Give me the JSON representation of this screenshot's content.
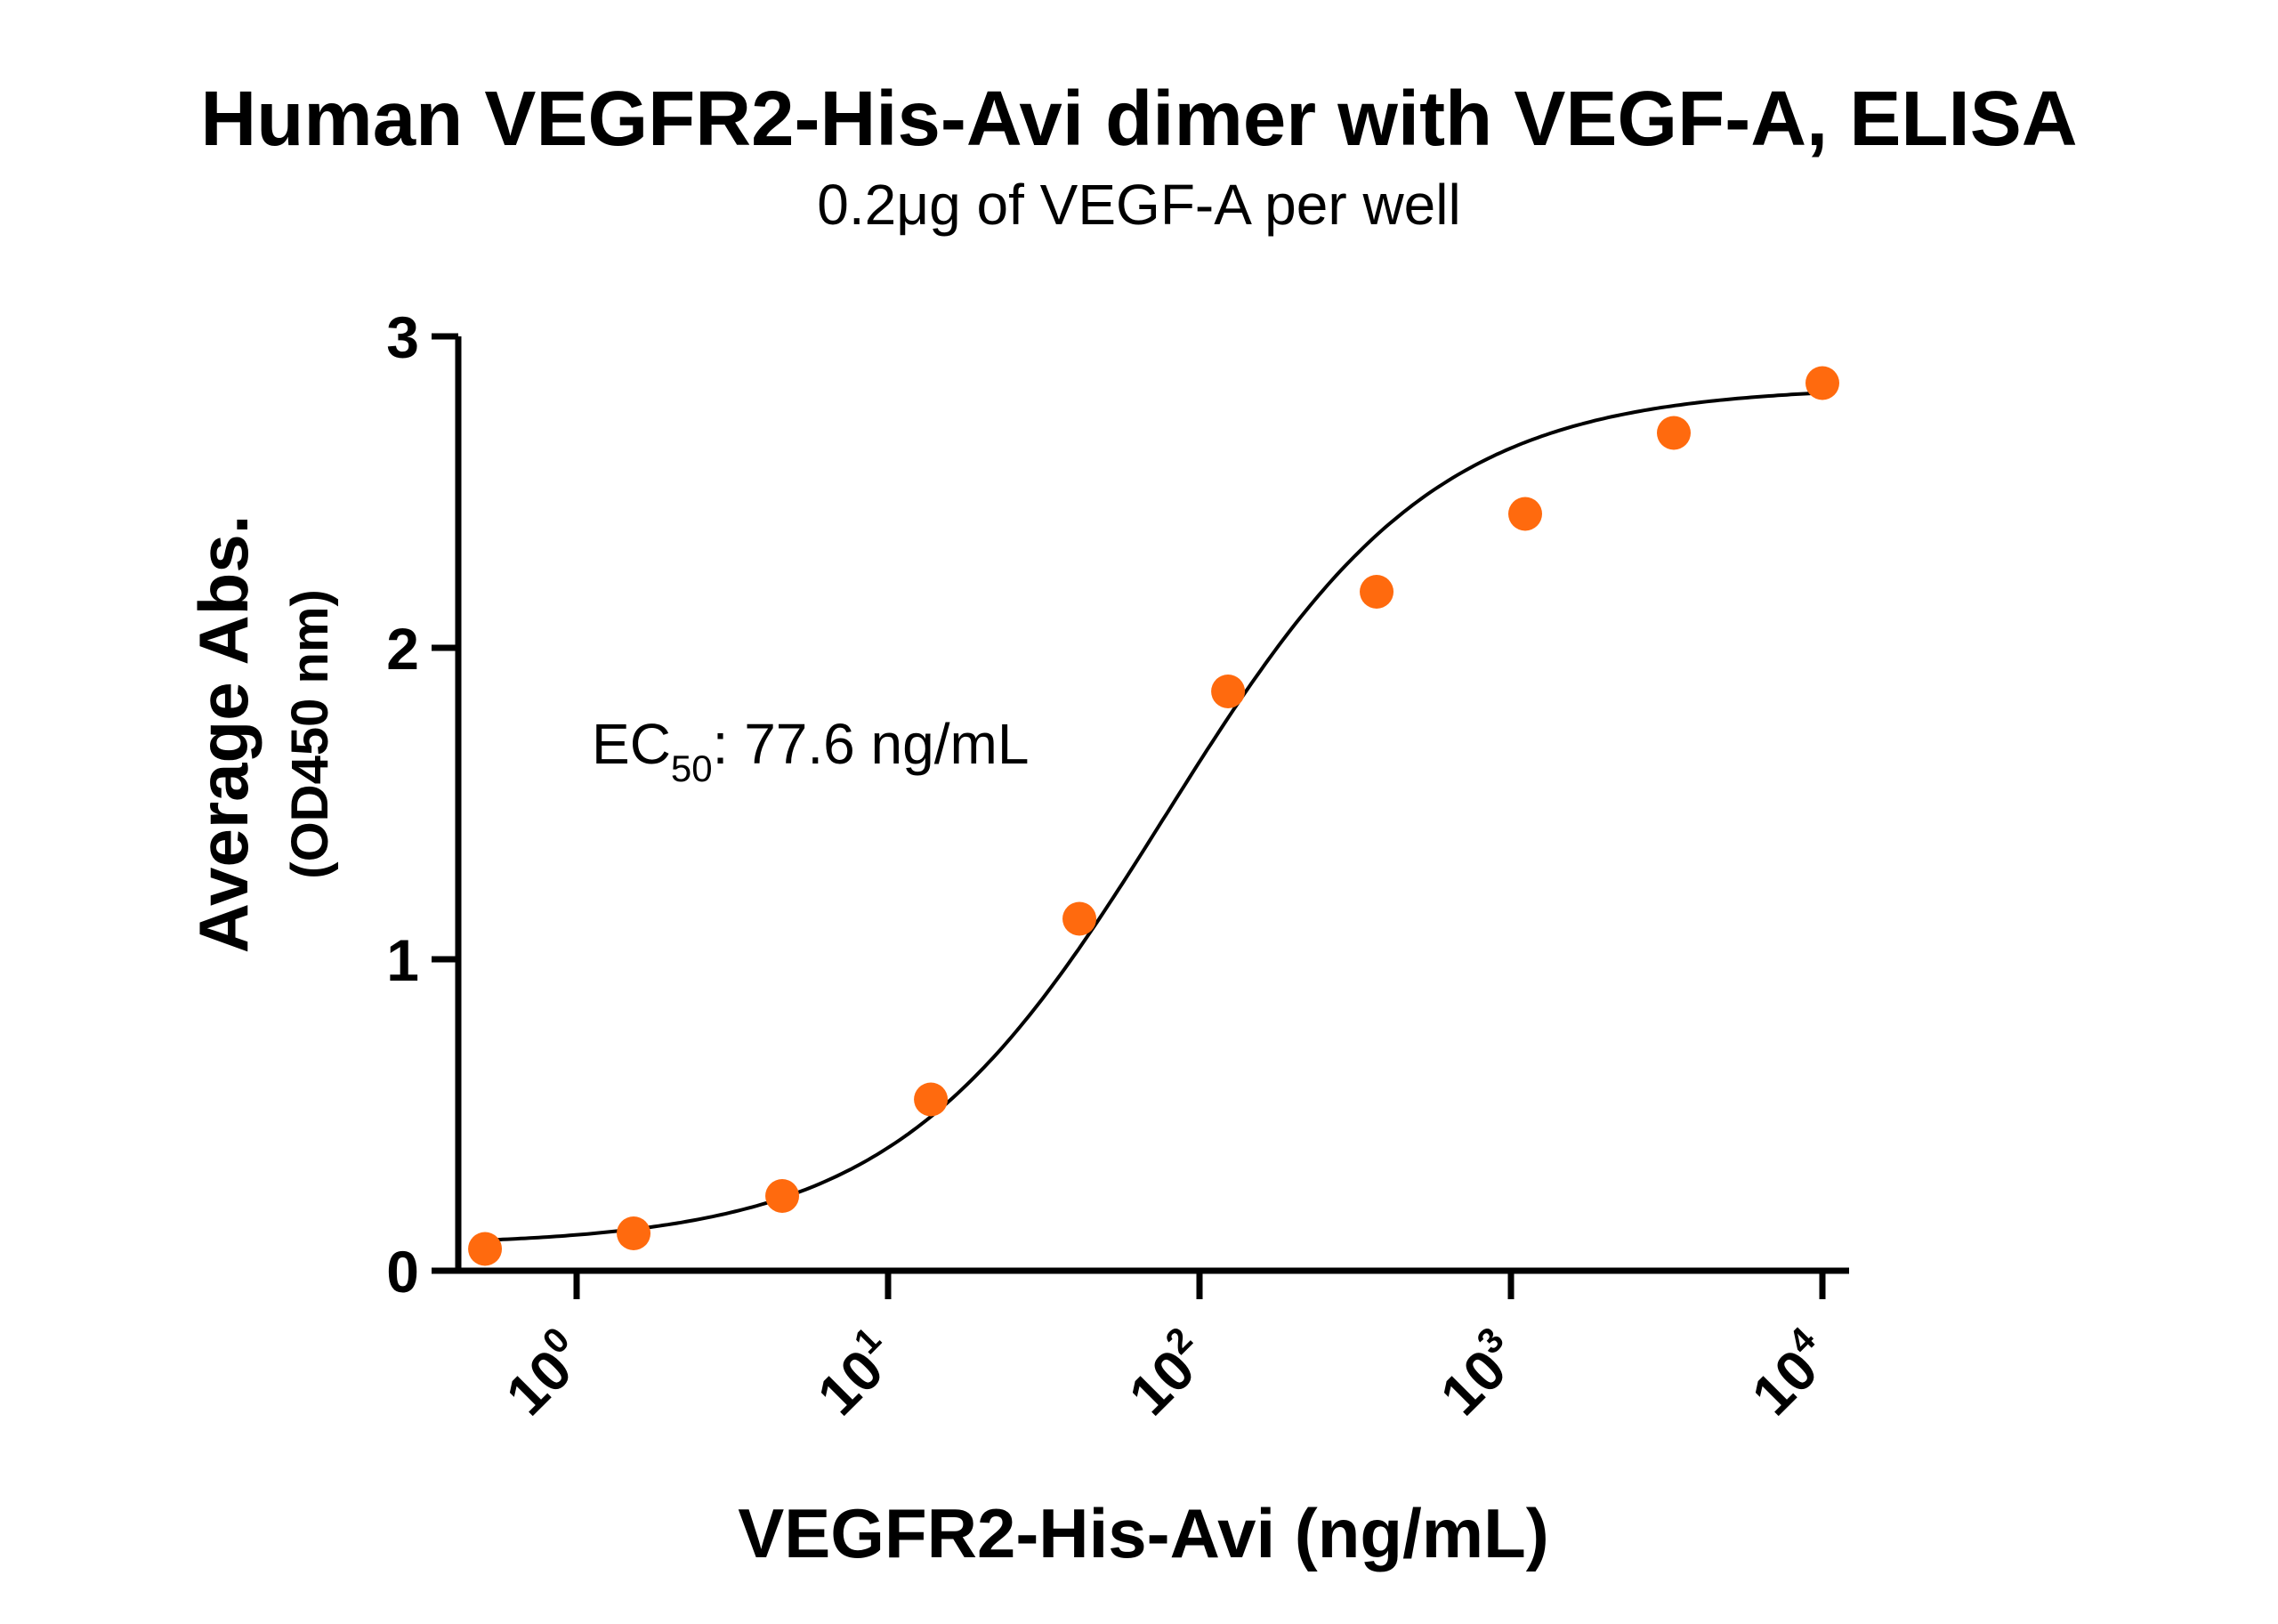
{
  "chart_data": {
    "type": "scatter",
    "title": "Human VEGFR2-His-Avi dimer with VEGF-A, ELISA",
    "subtitle": "0.2μg of VEGF-A per well",
    "xlabel": "VEGFR2-His-Avi (ng/mL)",
    "ylabel": "Average Abs.",
    "ylabel2": "(OD450 nm)",
    "xscale": "log",
    "xlim": [
      0.3,
      14000
    ],
    "ylim": [
      0,
      3
    ],
    "yticks": [
      "0",
      "1",
      "2",
      "3"
    ],
    "xticks": [
      {
        "base": "10",
        "exp": "0",
        "value": 1
      },
      {
        "base": "10",
        "exp": "1",
        "value": 10
      },
      {
        "base": "10",
        "exp": "2",
        "value": 100
      },
      {
        "base": "10",
        "exp": "3",
        "value": 1000
      },
      {
        "base": "10",
        "exp": "4",
        "value": 10000
      }
    ],
    "series": [
      {
        "x": [
          0.508,
          1.524,
          4.572,
          13.72,
          41.15,
          123.5,
          370.4,
          1111,
          3333,
          10000
        ],
        "y": [
          0.07,
          0.12,
          0.24,
          0.55,
          1.13,
          1.86,
          2.18,
          2.43,
          2.69,
          2.85
        ],
        "color": "#ff6a0e"
      }
    ],
    "fit_curve": {
      "model": "4PL",
      "bottom": 0.08,
      "top": 2.84,
      "ec50": 77.6,
      "hill": 1.0,
      "color": "#000000"
    },
    "annotation": {
      "prefix": "EC",
      "subscript": "50",
      "text": ": 77.6 ng/mL"
    },
    "grid": false
  }
}
